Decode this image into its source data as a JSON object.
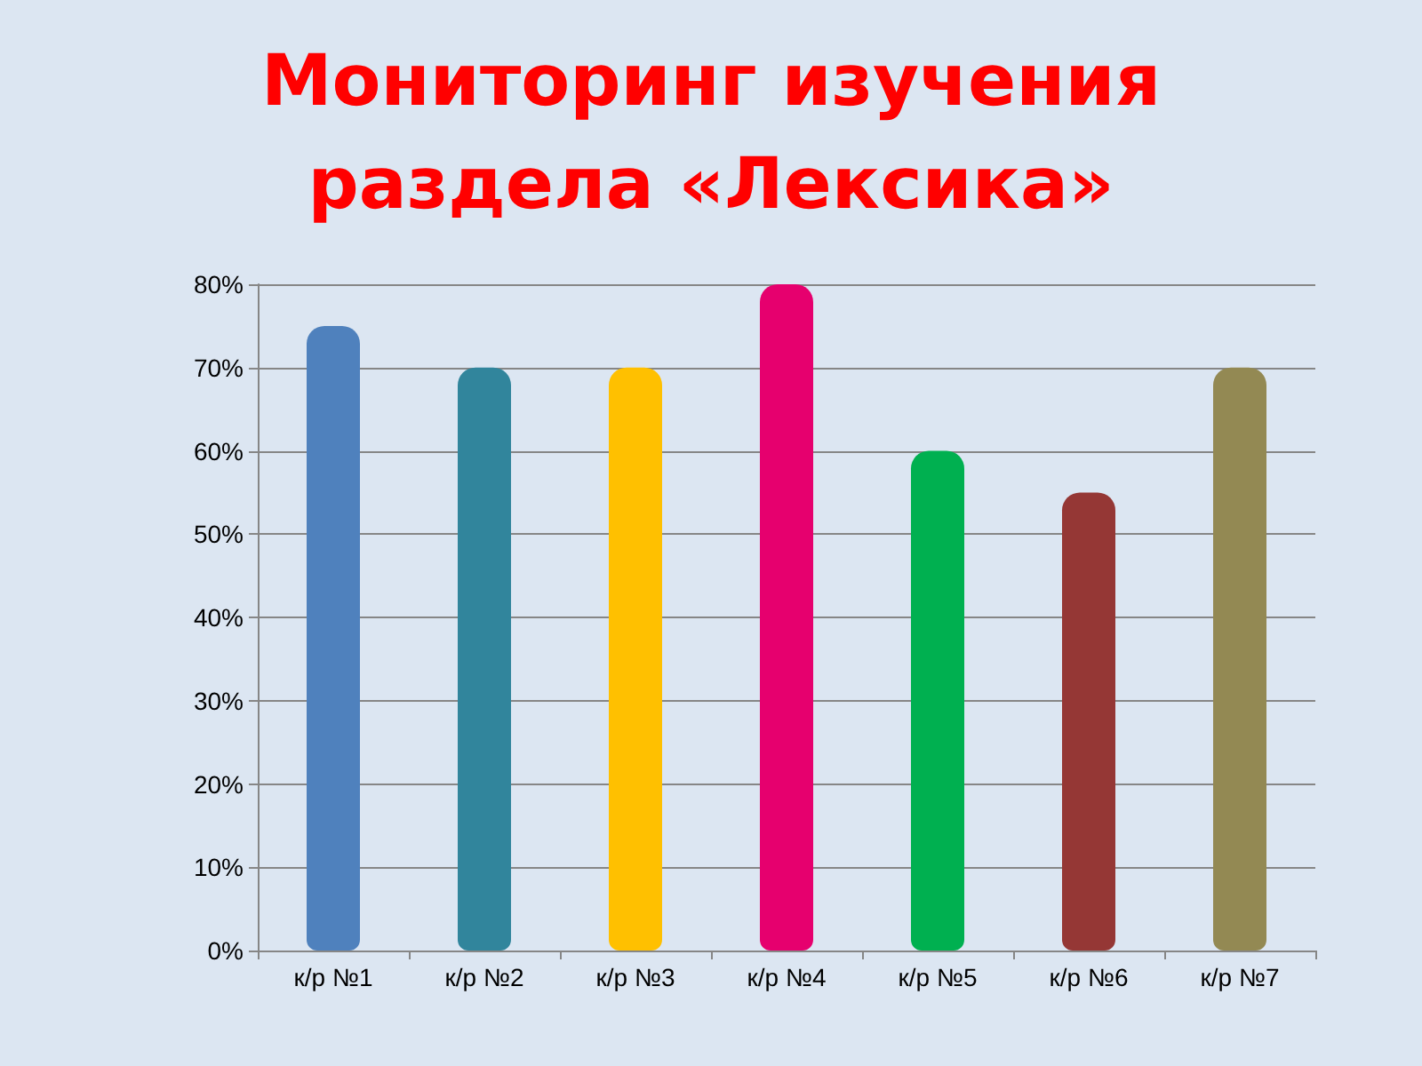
{
  "chart_data": {
    "type": "bar",
    "title": "Мониторинг изучения\nраздела «Лексика»",
    "categories": [
      "к/р №1",
      "к/р №2",
      "к/р №3",
      "к/р №4",
      "к/р №5",
      "к/р №6",
      "к/р №7"
    ],
    "values": [
      75,
      70,
      70,
      80,
      60,
      55,
      70
    ],
    "colors": [
      "#4f81bd",
      "#31859c",
      "#ffc000",
      "#e6006e",
      "#00b050",
      "#953735",
      "#938953"
    ],
    "ylim": [
      0,
      80
    ],
    "yticks": [
      {
        "value": 0,
        "label": "0%"
      },
      {
        "value": 10,
        "label": "10%"
      },
      {
        "value": 20,
        "label": "20%"
      },
      {
        "value": 30,
        "label": "30%"
      },
      {
        "value": 40,
        "label": "40%"
      },
      {
        "value": 50,
        "label": "50%"
      },
      {
        "value": 60,
        "label": "60%"
      },
      {
        "value": 70,
        "label": "70%"
      },
      {
        "value": 80,
        "label": "80%"
      }
    ],
    "grid": true
  }
}
